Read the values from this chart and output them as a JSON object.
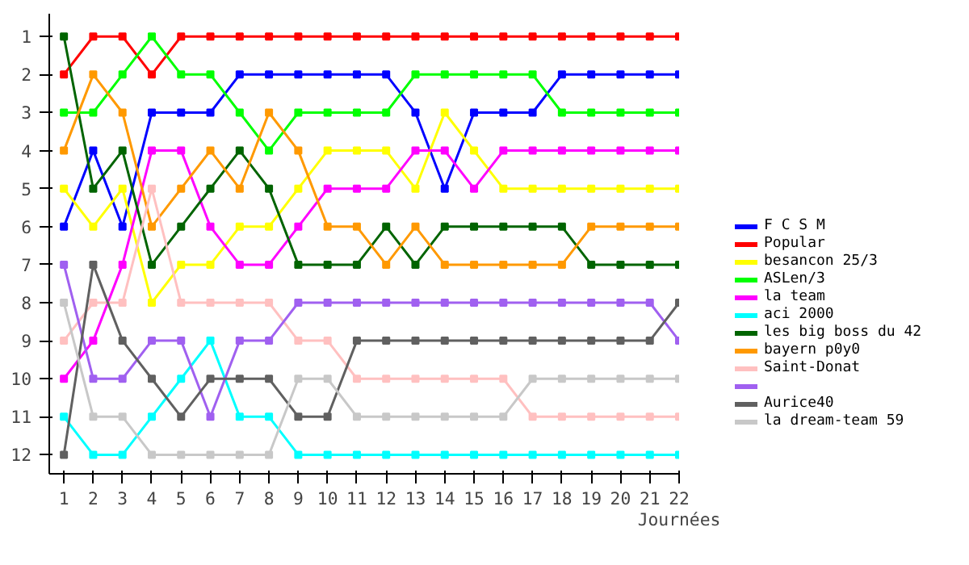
{
  "chart_data": {
    "type": "line",
    "xlabel": "Journées",
    "x": [
      1,
      2,
      3,
      4,
      5,
      6,
      7,
      8,
      9,
      10,
      11,
      12,
      13,
      14,
      15,
      16,
      17,
      18,
      19,
      20,
      21,
      22
    ],
    "xlim": [
      0.5,
      22
    ],
    "xticks": [
      1,
      2,
      3,
      4,
      5,
      6,
      7,
      8,
      9,
      10,
      11,
      12,
      13,
      14,
      15,
      16,
      17,
      18,
      19,
      20,
      21,
      22
    ],
    "ylim": [
      12.5,
      0.4
    ],
    "yticks": [
      1,
      2,
      3,
      4,
      5,
      6,
      7,
      8,
      9,
      10,
      11,
      12
    ],
    "grid": false,
    "legend": "right",
    "marker": "square",
    "line_style": "solid",
    "series": [
      {
        "name": "F C S M",
        "color": "#0000ff",
        "values": [
          6,
          4,
          6,
          3,
          3,
          3,
          2,
          2,
          2,
          2,
          2,
          2,
          3,
          5,
          3,
          3,
          3,
          2,
          2,
          2,
          2,
          2
        ]
      },
      {
        "name": "Popular",
        "color": "#ff0000",
        "values": [
          2,
          1,
          1,
          2,
          1,
          1,
          1,
          1,
          1,
          1,
          1,
          1,
          1,
          1,
          1,
          1,
          1,
          1,
          1,
          1,
          1,
          1
        ]
      },
      {
        "name": "besancon 25/3",
        "color": "#ffff00",
        "values": [
          5,
          6,
          5,
          8,
          7,
          7,
          6,
          6,
          5,
          4,
          4,
          4,
          5,
          3,
          4,
          5,
          5,
          5,
          5,
          5,
          5,
          5
        ]
      },
      {
        "name": "ASLen/3",
        "color": "#00ff00",
        "values": [
          3,
          3,
          2,
          1,
          2,
          2,
          3,
          4,
          3,
          3,
          3,
          3,
          2,
          2,
          2,
          2,
          2,
          3,
          3,
          3,
          3,
          3
        ]
      },
      {
        "name": "la team",
        "color": "#ff00ff",
        "values": [
          10,
          9,
          7,
          4,
          4,
          6,
          7,
          7,
          6,
          5,
          5,
          5,
          4,
          4,
          5,
          4,
          4,
          4,
          4,
          4,
          4,
          4
        ]
      },
      {
        "name": "aci 2000",
        "color": "#00ffff",
        "values": [
          11,
          12,
          12,
          11,
          10,
          9,
          11,
          11,
          12,
          12,
          12,
          12,
          12,
          12,
          12,
          12,
          12,
          12,
          12,
          12,
          12,
          12
        ]
      },
      {
        "name": "les big boss du 42",
        "color": "#006400",
        "values": [
          1,
          5,
          4,
          7,
          6,
          5,
          4,
          5,
          7,
          7,
          7,
          6,
          7,
          6,
          6,
          6,
          6,
          6,
          7,
          7,
          7,
          7
        ]
      },
      {
        "name": "bayern p0y0",
        "color": "#ff9900",
        "values": [
          4,
          2,
          3,
          6,
          5,
          4,
          5,
          3,
          4,
          6,
          6,
          7,
          6,
          7,
          7,
          7,
          7,
          7,
          6,
          6,
          6,
          6
        ]
      },
      {
        "name": "Saint-Donat",
        "color": "#ffc0c0",
        "values": [
          9,
          8,
          8,
          5,
          8,
          8,
          8,
          8,
          9,
          9,
          10,
          10,
          10,
          10,
          10,
          10,
          11,
          11,
          11,
          11,
          11,
          11
        ]
      },
      {
        "color": "#a060f0",
        "values": [
          7,
          10,
          10,
          9,
          9,
          11,
          9,
          9,
          8,
          8,
          8,
          8,
          8,
          8,
          8,
          8,
          8,
          8,
          8,
          8,
          8,
          9
        ]
      },
      {
        "name": "Aurice40",
        "color": "#606060",
        "values": [
          12,
          7,
          9,
          10,
          11,
          10,
          10,
          10,
          11,
          11,
          9,
          9,
          9,
          9,
          9,
          9,
          9,
          9,
          9,
          9,
          9,
          8
        ]
      },
      {
        "name": "la dream-team 59",
        "color": "#c8c8c8",
        "values": [
          8,
          11,
          11,
          12,
          12,
          12,
          12,
          12,
          10,
          10,
          11,
          11,
          11,
          11,
          11,
          11,
          10,
          10,
          10,
          10,
          10,
          10
        ]
      }
    ]
  }
}
